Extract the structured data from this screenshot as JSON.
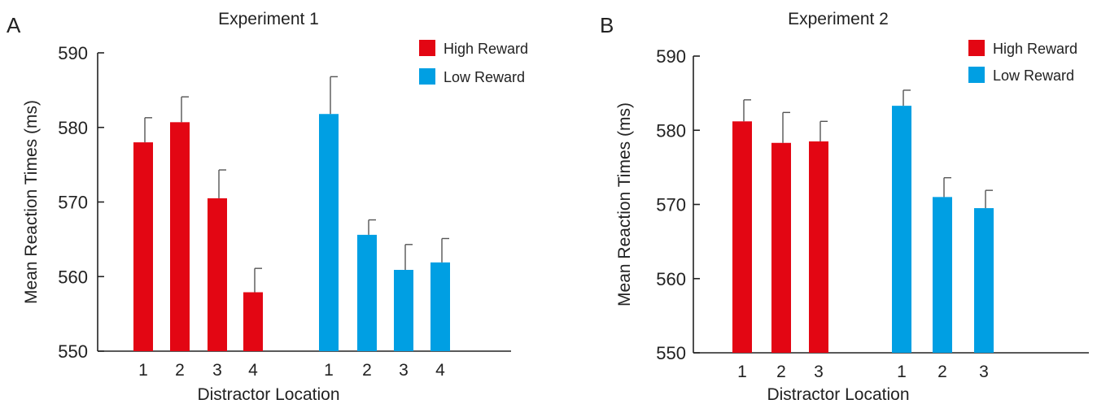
{
  "panels": [
    {
      "letter": "A"
    },
    {
      "letter": "B"
    }
  ],
  "chart_data": [
    {
      "type": "bar",
      "panel": "A",
      "title": "Experiment 1",
      "xlabel": "Distractor Location",
      "ylabel": "Mean Reaction Times (ms)",
      "ylim": [
        550,
        590
      ],
      "yticks": [
        550,
        560,
        570,
        580,
        590
      ],
      "grid": false,
      "legend_position": "top-right",
      "series": [
        {
          "name": "High Reward",
          "color": "#e30613",
          "categories": [
            "1",
            "2",
            "3",
            "4"
          ],
          "values": [
            578.0,
            580.7,
            570.5,
            557.9
          ],
          "errors": [
            3.3,
            3.4,
            3.8,
            3.2
          ]
        },
        {
          "name": "Low Reward",
          "color": "#009fe3",
          "categories": [
            "1",
            "2",
            "3",
            "4"
          ],
          "values": [
            581.8,
            565.6,
            560.9,
            561.9
          ],
          "errors": [
            5.0,
            2.0,
            3.4,
            3.2
          ]
        }
      ]
    },
    {
      "type": "bar",
      "panel": "B",
      "title": "Experiment 2",
      "xlabel": "Distractor Location",
      "ylabel": "Mean Reaction Times (ms)",
      "ylim": [
        550,
        590
      ],
      "yticks": [
        550,
        560,
        570,
        580,
        590
      ],
      "grid": false,
      "legend_position": "top-right",
      "series": [
        {
          "name": "High Reward",
          "color": "#e30613",
          "categories": [
            "1",
            "2",
            "3"
          ],
          "values": [
            581.2,
            578.3,
            578.5
          ],
          "errors": [
            2.9,
            4.1,
            2.7
          ]
        },
        {
          "name": "Low Reward",
          "color": "#009fe3",
          "categories": [
            "1",
            "2",
            "3"
          ],
          "values": [
            583.3,
            571.0,
            569.5
          ],
          "errors": [
            2.1,
            2.6,
            2.4
          ]
        }
      ]
    }
  ]
}
